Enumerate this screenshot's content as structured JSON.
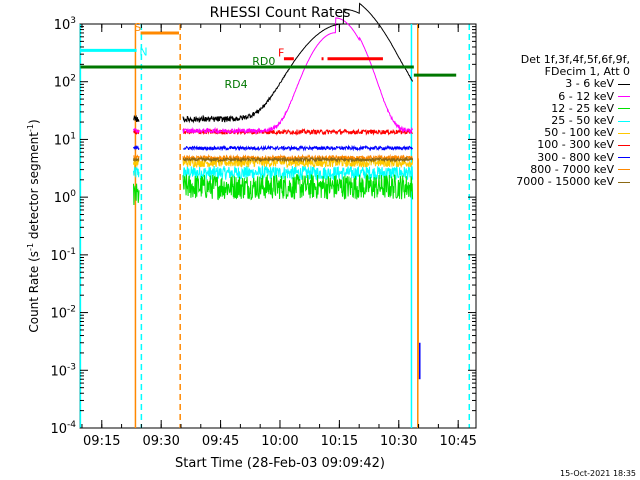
{
  "chart_data": {
    "type": "line",
    "title": "RHESSI Count Rates",
    "xlabel": "Start Time (28-Feb-03 09:09:42)",
    "ylabel": "Count Rate (s-1 detector segment-1)",
    "ylabel_parts": {
      "pre": "Count Rate (s",
      "sup1": "-1",
      "mid": " detector segment",
      "sup2": "-1",
      "post": ")"
    },
    "yscale": "log",
    "xlim_minutes": [
      9.5,
      48.5
    ],
    "ylim_exp": [
      -4,
      3
    ],
    "x_ticks": [
      {
        "label": "09:15",
        "min": 15
      },
      {
        "label": "09:30",
        "min": 30
      },
      {
        "label": "09:45",
        "min": 45
      },
      {
        "label": "10:00",
        "min": 60
      },
      {
        "label": "10:15",
        "min": 75
      },
      {
        "label": "10:30",
        "min": 90
      },
      {
        "label": "10:45",
        "min": 105
      }
    ],
    "x_minor_step_min": 5,
    "y_ticks": [
      {
        "base": "10",
        "exp": "3",
        "value": 1000
      },
      {
        "base": "10",
        "exp": "2",
        "value": 100
      },
      {
        "base": "10",
        "exp": "1",
        "value": 10
      },
      {
        "base": "10",
        "exp": "0",
        "value": 1
      },
      {
        "base": "10",
        "exp": "-1",
        "value": 0.1
      },
      {
        "base": "10",
        "exp": "-2",
        "value": 0.01
      },
      {
        "base": "10",
        "exp": "-3",
        "value": 0.001
      },
      {
        "base": "10",
        "exp": "-4",
        "value": 0.0001
      }
    ],
    "legend_header": [
      "Det 1f,3f,4f,5f,6f,9f,",
      "FDecim 1, Att 0"
    ],
    "series": [
      {
        "name": "3 - 6 keV",
        "color": "#000000",
        "base": 1.35,
        "noise": 0.05,
        "flare": 1.9,
        "flare_center": 76,
        "flare_width": 7,
        "tail": 0.35
      },
      {
        "name": "6 - 12 keV",
        "color": "#ff00ff",
        "base": 1.15,
        "noise": 0.04,
        "flare": 1.95,
        "flare_center": 74,
        "flare_width": 4.5,
        "tail": 0.1
      },
      {
        "name": "12 - 25 keV",
        "color": "#00e000",
        "base": 0.18,
        "noise": 0.22,
        "flare": 0,
        "flare_center": 75,
        "flare_width": 5,
        "tail": 0
      },
      {
        "name": "25 - 50 keV",
        "color": "#00ffff",
        "base": 0.42,
        "noise": 0.12,
        "flare": 0,
        "flare_center": 75,
        "flare_width": 5,
        "tail": 0
      },
      {
        "name": "50 - 100 keV",
        "color": "#ffc800",
        "base": 0.6,
        "noise": 0.08,
        "flare": 0,
        "flare_center": 75,
        "flare_width": 5,
        "tail": 0
      },
      {
        "name": "100 - 300 keV",
        "color": "#ff0000",
        "base": 1.13,
        "noise": 0.04,
        "flare": 0,
        "flare_center": 75,
        "flare_width": 5,
        "tail": 0
      },
      {
        "name": "300 - 800 keV",
        "color": "#0000ff",
        "base": 0.85,
        "noise": 0.03,
        "flare": 0,
        "flare_center": 75,
        "flare_width": 5,
        "tail": 0
      },
      {
        "name": "800 - 7000 keV",
        "color": "#ff8800",
        "base": 0.68,
        "noise": 0.04,
        "flare": 0,
        "flare_center": 75,
        "flare_width": 5,
        "tail": 0
      },
      {
        "name": "7000 - 15000 keV",
        "color": "#8b6914",
        "base": 0.65,
        "noise": 0.03,
        "flare": 0,
        "flare_center": 75,
        "flare_width": 5,
        "tail": 0
      }
    ],
    "data_segments": [
      [
        23,
        24.5
      ],
      [
        35.5,
        93.5
      ]
    ],
    "flags": [
      {
        "label": "S",
        "color": "#ff8800",
        "x0": 24.8,
        "x1": 34.5,
        "y": 700,
        "label_min": 23.2
      },
      {
        "label": "N",
        "color": "#00ffff",
        "x0": 9.6,
        "x1": 23.8,
        "y": 350,
        "label_min": 24.5
      },
      {
        "label": "RD0",
        "color": "#007700",
        "x0": 9.6,
        "x1": 93.8,
        "y": 180,
        "label_min": 53
      },
      {
        "label": "RD4",
        "color": "#007700",
        "x0": 93.8,
        "x1": 104.5,
        "y": 130,
        "label_min": 46
      },
      {
        "label": "F",
        "color": "#ff0000",
        "x0": 61,
        "x1": 63.5,
        "y": 250,
        "label_min": 59.5
      }
    ],
    "f_extra_segments": [
      [
        70.5,
        71
      ],
      [
        72,
        86
      ]
    ],
    "vertical_lines": [
      {
        "min": 9.6,
        "color": "#00ffff",
        "dash": false
      },
      {
        "min": 23.5,
        "color": "#ff8800",
        "dash": false
      },
      {
        "min": 25,
        "color": "#00ffff",
        "dash": true
      },
      {
        "min": 34.8,
        "color": "#ff8800",
        "dash": true
      },
      {
        "min": 93.2,
        "color": "#00ffff",
        "dash": false
      },
      {
        "min": 94.8,
        "color": "#ff8800",
        "dash": false
      },
      {
        "min": 107.8,
        "color": "#00ffff",
        "dash": true
      }
    ],
    "blue_spike": {
      "min": 95.3,
      "lo": 0.0007,
      "hi": 0.003
    }
  },
  "footer_timestamp": "15-Oct-2021 18:35"
}
